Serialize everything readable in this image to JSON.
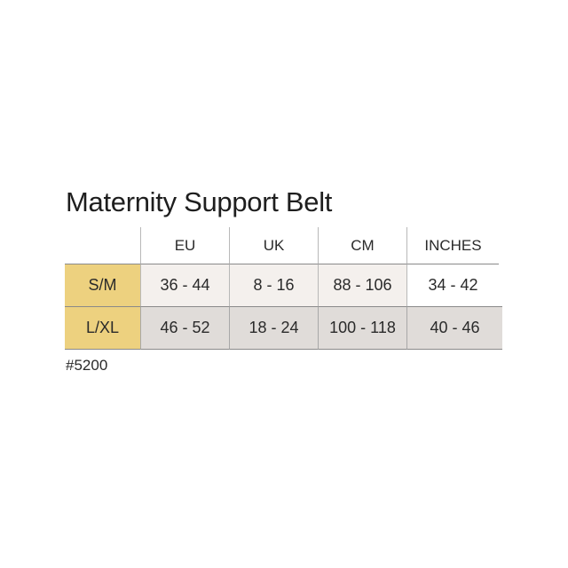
{
  "title": "Maternity Support Belt",
  "colors": {
    "size_label_bg": "#edd17f",
    "row1_bg": "#f4f0ed",
    "row2_bg": "#e0dcd9"
  },
  "table": {
    "headers": [
      "",
      "EU",
      "UK",
      "CM",
      "INCHES"
    ],
    "rows": [
      {
        "size": "S/M",
        "values": [
          "36 - 44",
          "8 - 16",
          "88 - 106",
          "34 - 42"
        ]
      },
      {
        "size": "L/XL",
        "values": [
          "46 - 52",
          "18 - 24",
          "100 - 118",
          "40 - 46"
        ]
      }
    ]
  },
  "product_code": "#5200"
}
